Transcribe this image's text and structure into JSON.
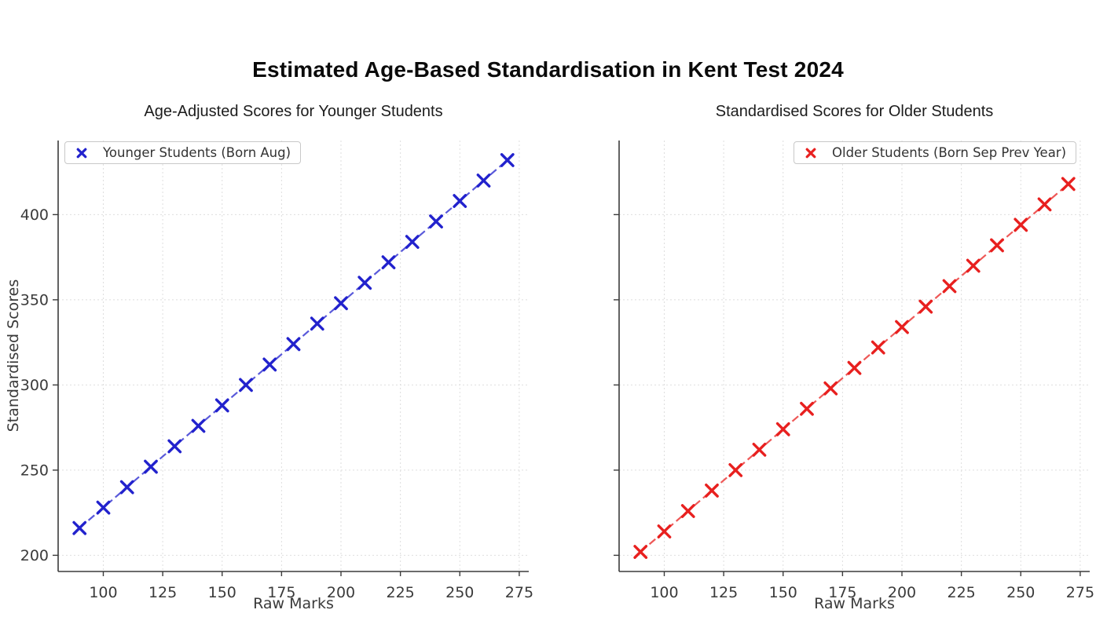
{
  "page_title": "Estimated Age-Based Standardisation in Kent Test 2024",
  "chart_data": [
    {
      "type": "scatter",
      "title": "Age-Adjusted Scores for Younger Students",
      "xlabel": "Raw Marks",
      "ylabel": "Standardised Scores",
      "grid": true,
      "legend_position": "upper left",
      "xlim": [
        81,
        279
      ],
      "ylim": [
        190.5,
        443.5
      ],
      "xticks": [
        100,
        125,
        150,
        175,
        200,
        225,
        250,
        275
      ],
      "yticks": [
        200,
        250,
        300,
        350,
        400
      ],
      "show_ytick_labels": true,
      "series": [
        {
          "name": "Younger Students (Born Aug)",
          "color": "#2222cd",
          "marker": "x",
          "linestyle": "dashed",
          "x": [
            90,
            100,
            110,
            120,
            130,
            140,
            150,
            160,
            170,
            180,
            190,
            200,
            210,
            220,
            230,
            240,
            250,
            260,
            270
          ],
          "y": [
            216,
            228,
            240,
            252,
            264,
            276,
            288,
            300,
            312,
            324,
            336,
            348,
            360,
            372,
            384,
            396,
            408,
            420,
            432
          ]
        }
      ]
    },
    {
      "type": "scatter",
      "title": "Standardised Scores for Older Students",
      "xlabel": "Raw Marks",
      "ylabel": "",
      "grid": true,
      "legend_position": "upper right",
      "xlim": [
        81,
        279
      ],
      "ylim": [
        190.5,
        443.5
      ],
      "xticks": [
        100,
        125,
        150,
        175,
        200,
        225,
        250,
        275
      ],
      "yticks": [
        200,
        250,
        300,
        350,
        400
      ],
      "show_ytick_labels": false,
      "series": [
        {
          "name": "Older Students (Born Sep Prev Year)",
          "color": "#e8201f",
          "marker": "x",
          "linestyle": "dashed",
          "x": [
            90,
            100,
            110,
            120,
            130,
            140,
            150,
            160,
            170,
            180,
            190,
            200,
            210,
            220,
            230,
            240,
            250,
            260,
            270
          ],
          "y": [
            202,
            214,
            226,
            238,
            250,
            262,
            274,
            286,
            298,
            310,
            322,
            334,
            346,
            358,
            370,
            382,
            394,
            406,
            418
          ]
        }
      ]
    }
  ],
  "colors": {
    "axis": "#3b3b3b",
    "grid": "#dedede",
    "tick_text": "#3a3a3a"
  }
}
